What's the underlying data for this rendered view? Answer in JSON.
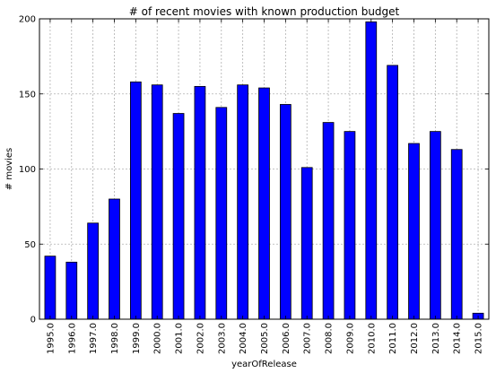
{
  "chart_data": {
    "type": "bar",
    "title": "# of recent movies with known production budget",
    "xlabel": "yearOfRelease",
    "ylabel": "# movies",
    "categories": [
      "1995.0",
      "1996.0",
      "1997.0",
      "1998.0",
      "1999.0",
      "2000.0",
      "2001.0",
      "2002.0",
      "2003.0",
      "2004.0",
      "2005.0",
      "2006.0",
      "2007.0",
      "2008.0",
      "2009.0",
      "2010.0",
      "2011.0",
      "2012.0",
      "2013.0",
      "2014.0",
      "2015.0"
    ],
    "values": [
      42,
      38,
      64,
      80,
      158,
      156,
      137,
      155,
      141,
      156,
      154,
      143,
      101,
      131,
      125,
      198,
      169,
      117,
      125,
      113,
      4
    ],
    "ylim": [
      0,
      200
    ],
    "yticks": [
      0,
      50,
      100,
      150,
      200
    ],
    "grid": true,
    "colors": {
      "bar": "#0000ff",
      "edge": "#000000"
    }
  }
}
